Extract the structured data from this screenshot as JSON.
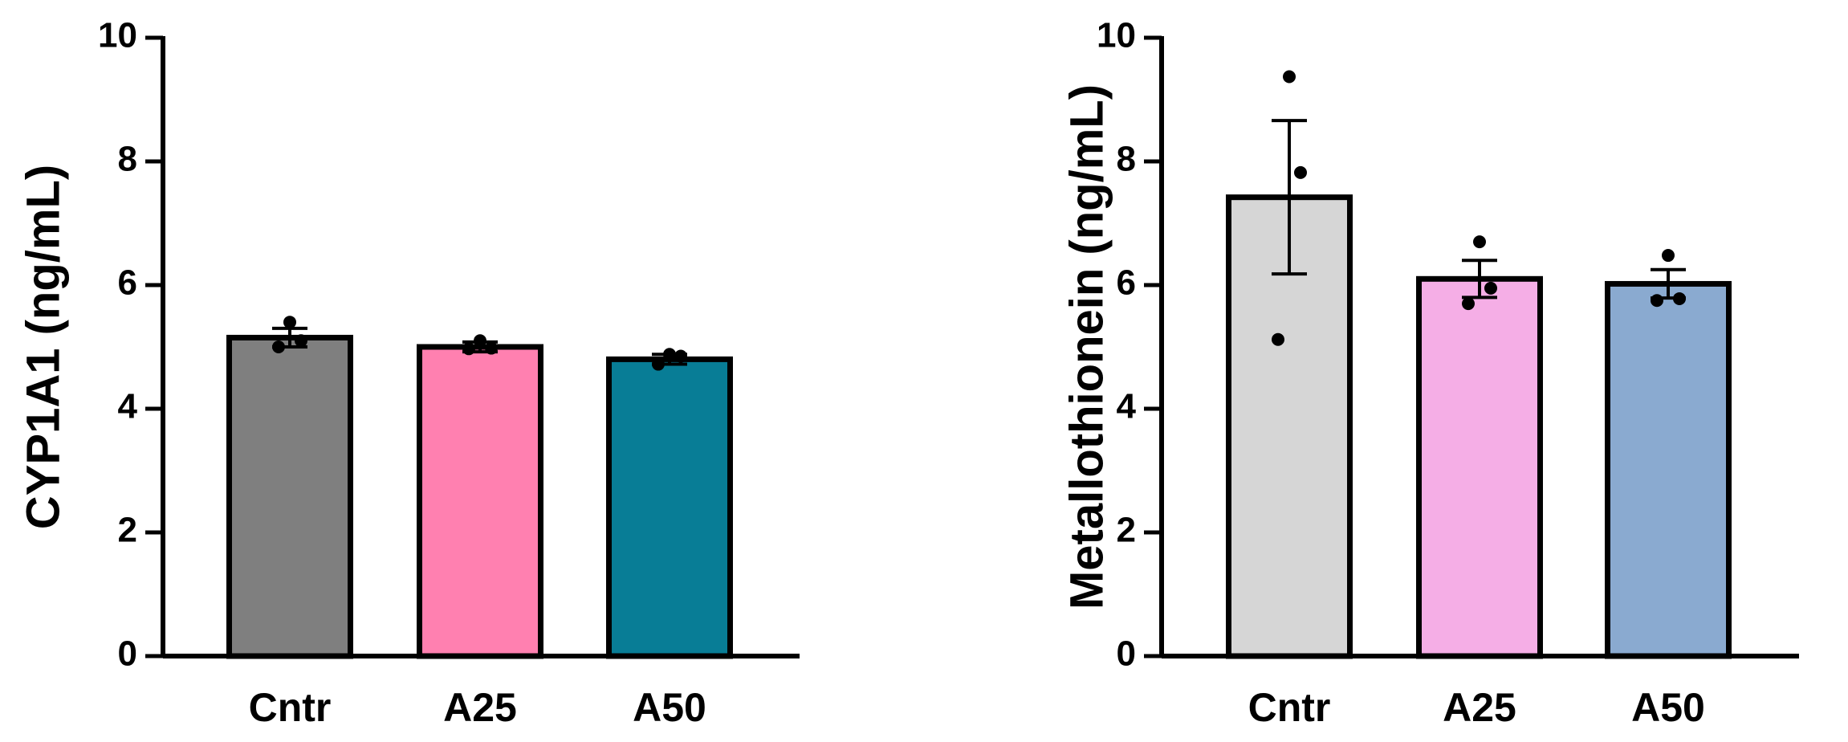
{
  "chart_data": [
    {
      "type": "bar",
      "y_label": "CYP1A1 (ng/mL)",
      "categories": [
        "Cntr",
        "A25",
        "A50"
      ],
      "values": [
        5.15,
        5.0,
        4.8
      ],
      "errors": [
        0.15,
        0.08,
        0.08
      ],
      "points": [
        [
          5.4,
          5.1,
          5.0
        ],
        [
          5.1,
          4.98,
          4.97
        ],
        [
          4.88,
          4.85,
          4.72
        ]
      ],
      "colors": [
        "#7f7f7f",
        "#ff80b0",
        "#087d96"
      ],
      "ylim": [
        0,
        10
      ],
      "yticks": [
        0,
        2,
        4,
        6,
        8,
        10
      ]
    },
    {
      "type": "bar",
      "y_label": "Metallothionein (ng/mL)",
      "categories": [
        "Cntr",
        "A25",
        "A50"
      ],
      "values": [
        7.42,
        6.1,
        6.02
      ],
      "errors": [
        1.24,
        0.3,
        0.23
      ],
      "points": [
        [
          9.37,
          7.82,
          5.12
        ],
        [
          6.7,
          5.95,
          5.7
        ],
        [
          6.48,
          5.78,
          5.75
        ]
      ],
      "colors": [
        "#d6d6d6",
        "#f5aee6",
        "#8aaad0"
      ],
      "ylim": [
        0,
        10
      ],
      "yticks": [
        0,
        2,
        4,
        6,
        8,
        10
      ]
    }
  ]
}
